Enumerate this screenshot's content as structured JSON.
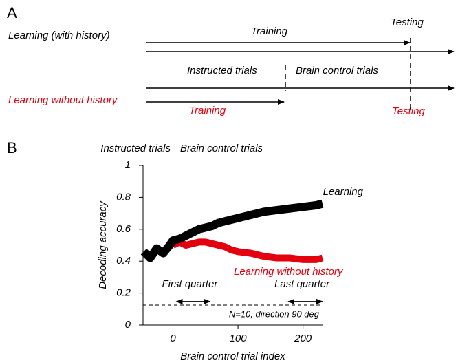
{
  "diagram": {
    "panel_label": "A",
    "learning_label": "Learning (with history)",
    "training_label": "Training",
    "testing_label": "Testing",
    "instructed_label": "Instructed trials",
    "brain_control_label": "Brain control trials",
    "no_history_label": "Learning without history",
    "no_history_training": "Training",
    "no_history_testing": "Testing"
  },
  "chart_data": {
    "type": "line",
    "panel_label": "B",
    "xlabel": "Brain control trial index",
    "ylabel": "Decoding accuracy",
    "phase_labels": [
      "Instructed trials",
      "Brain control trials"
    ],
    "x": [
      -45,
      -35,
      -25,
      -15,
      -5,
      0,
      10,
      20,
      30,
      40,
      50,
      60,
      70,
      80,
      90,
      100,
      120,
      140,
      160,
      180,
      200,
      220,
      230
    ],
    "series": [
      {
        "name": "Learning",
        "color": "#000000",
        "values": [
          0.46,
          0.42,
          0.48,
          0.45,
          0.5,
          0.53,
          0.54,
          0.56,
          0.58,
          0.6,
          0.61,
          0.62,
          0.64,
          0.65,
          0.66,
          0.67,
          0.69,
          0.71,
          0.72,
          0.73,
          0.74,
          0.75,
          0.76
        ]
      },
      {
        "name": "Learning without history",
        "color": "#e3000f",
        "values": [
          null,
          null,
          null,
          null,
          null,
          0.5,
          0.52,
          0.5,
          0.51,
          0.52,
          0.52,
          0.51,
          0.5,
          0.49,
          0.47,
          0.46,
          0.45,
          0.43,
          0.42,
          0.42,
          0.41,
          0.41,
          0.42
        ]
      }
    ],
    "divider_x": 0,
    "chance_level": 0.125,
    "chance_note": "N=10, direction 90 deg",
    "quarters": [
      {
        "label": "First quarter",
        "range": [
          0,
          57
        ]
      },
      {
        "label": "Last quarter",
        "range": [
          172,
          230
        ]
      }
    ],
    "xlim": [
      -46,
      230
    ],
    "xticks": [
      0,
      100,
      200
    ],
    "ylim": [
      0,
      1
    ],
    "yticks": [
      0,
      0.2,
      0.4,
      0.6,
      0.8,
      1
    ]
  }
}
